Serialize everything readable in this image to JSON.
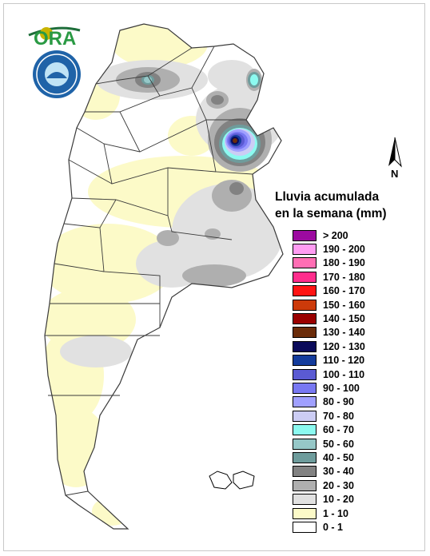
{
  "logo": {
    "text": "ORA"
  },
  "compass": {
    "label": "N"
  },
  "legend": {
    "title_line1": "Lluvia acumulada",
    "title_line2": "en la semana (mm)",
    "items": [
      {
        "label": "> 200",
        "color": "#9c0aa0"
      },
      {
        "label": "190 - 200",
        "color": "#ff9cf2"
      },
      {
        "label": "180 - 190",
        "color": "#ff6eb4"
      },
      {
        "label": "170 - 180",
        "color": "#ff2d8c"
      },
      {
        "label": "160 - 170",
        "color": "#ff1414"
      },
      {
        "label": "150 - 160",
        "color": "#cc3a0a"
      },
      {
        "label": "140 - 150",
        "color": "#9a0000"
      },
      {
        "label": "130 - 140",
        "color": "#6b2c0a"
      },
      {
        "label": "120 - 130",
        "color": "#0a0a5a"
      },
      {
        "label": "110 - 120",
        "color": "#143c9c"
      },
      {
        "label": "100 - 110",
        "color": "#5a5ad2"
      },
      {
        "label": "90 - 100",
        "color": "#7878f2"
      },
      {
        "label": "80 - 90",
        "color": "#a0a0ff"
      },
      {
        "label": "70 - 80",
        "color": "#cccdf4"
      },
      {
        "label": "60 - 70",
        "color": "#8cfaf0"
      },
      {
        "label": "50 - 60",
        "color": "#96c8c8"
      },
      {
        "label": "40 - 50",
        "color": "#6e9c9c"
      },
      {
        "label": "30 - 40",
        "color": "#828282"
      },
      {
        "label": "20 - 30",
        "color": "#afafaf"
      },
      {
        "label": "10 - 20",
        "color": "#e1e1e1"
      },
      {
        "label": "1 - 10",
        "color": "#fcfac8"
      },
      {
        "label": "0 - 1",
        "color": "#ffffff"
      }
    ]
  }
}
